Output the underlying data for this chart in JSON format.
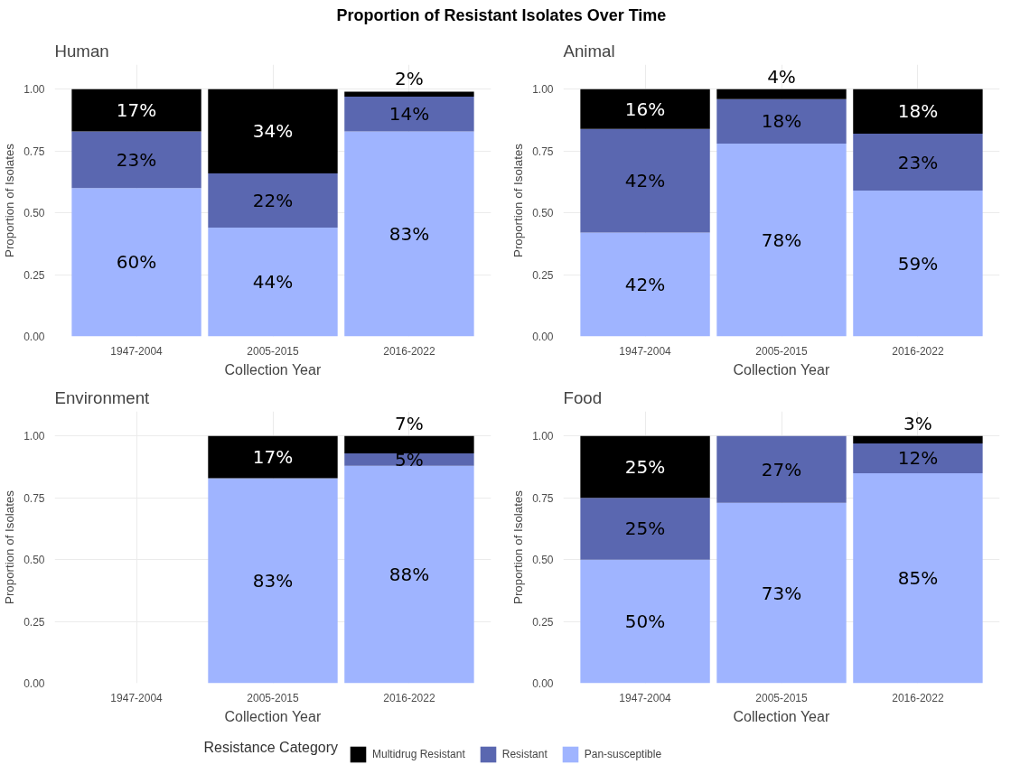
{
  "chart_data": [
    {
      "type": "bar",
      "stacked": true,
      "title": "Human",
      "annotations": [
        "Proportion of Resistant Isolates Over Time"
      ],
      "legend": "bottom",
      "legend_title": "Resistance Category",
      "xlabel": "Collection Year",
      "ylabel": "Proportion of Isolates",
      "categories": [
        "1947-2004",
        "2005-2015",
        "2016-2022"
      ],
      "ylim": [
        0,
        1
      ],
      "yticks": [
        {
          "value": 0,
          "label": "0.00"
        },
        {
          "value": 0.25,
          "label": "0.25"
        },
        {
          "value": 0.5,
          "label": "0.50"
        },
        {
          "value": 0.75,
          "label": "0.75"
        },
        {
          "value": 1,
          "label": "1.00"
        }
      ],
      "grid": true,
      "series": [
        {
          "name": "Pan-susceptible",
          "color": "#9fb4ff",
          "values": [
            0.6,
            0.44,
            0.83
          ],
          "value_labels": [
            "60%",
            "44%",
            "83%"
          ]
        },
        {
          "name": "Resistant",
          "color": "#5a67b0",
          "values": [
            0.23,
            0.22,
            0.14
          ],
          "value_labels": [
            "23%",
            "22%",
            "14%"
          ]
        },
        {
          "name": "Multidrug Resistant",
          "color": "#000000",
          "values": [
            0.17,
            0.34,
            0.02
          ],
          "value_labels": [
            "17%",
            "34%",
            "2%"
          ]
        }
      ]
    },
    {
      "type": "bar",
      "stacked": true,
      "title": "Animal",
      "xlabel": "Collection Year",
      "ylabel": "Proportion of Isolates",
      "categories": [
        "1947-2004",
        "2005-2015",
        "2016-2022"
      ],
      "ylim": [
        0,
        1
      ],
      "yticks": [
        {
          "value": 0,
          "label": "0.00"
        },
        {
          "value": 0.25,
          "label": "0.25"
        },
        {
          "value": 0.5,
          "label": "0.50"
        },
        {
          "value": 0.75,
          "label": "0.75"
        },
        {
          "value": 1,
          "label": "1.00"
        }
      ],
      "grid": true,
      "series": [
        {
          "color": "#9fb4ff",
          "values": [
            0.42,
            0.78,
            0.59
          ],
          "value_labels": [
            "42%",
            "78%",
            "59%"
          ]
        },
        {
          "color": "#5a67b0",
          "values": [
            0.42,
            0.18,
            0.23
          ],
          "value_labels": [
            "42%",
            "18%",
            "23%"
          ]
        },
        {
          "color": "#000000",
          "values": [
            0.16,
            0.04,
            0.18
          ],
          "value_labels": [
            "16%",
            "4%",
            "18%"
          ]
        }
      ]
    },
    {
      "type": "bar",
      "stacked": true,
      "title": "Environment",
      "xlabel": "Collection Year",
      "ylabel": "Proportion of Isolates",
      "categories": [
        "1947-2004",
        "2005-2015",
        "2016-2022"
      ],
      "ylim": [
        0,
        1
      ],
      "yticks": [
        {
          "value": 0,
          "label": "0.00"
        },
        {
          "value": 0.25,
          "label": "0.25"
        },
        {
          "value": 0.5,
          "label": "0.50"
        },
        {
          "value": 0.75,
          "label": "0.75"
        },
        {
          "value": 1,
          "label": "1.00"
        }
      ],
      "grid": true,
      "series": [
        {
          "color": "#9fb4ff",
          "values": [
            null,
            0.83,
            0.88
          ],
          "value_labels": [
            null,
            "83%",
            "88%"
          ]
        },
        {
          "color": "#5a67b0",
          "values": [
            null,
            null,
            0.05
          ],
          "value_labels": [
            null,
            null,
            "5%"
          ]
        },
        {
          "color": "#000000",
          "values": [
            null,
            0.17,
            0.07
          ],
          "value_labels": [
            null,
            "17%",
            "7%"
          ]
        }
      ]
    },
    {
      "type": "bar",
      "stacked": true,
      "title": "Food",
      "xlabel": "Collection Year",
      "ylabel": "Proportion of Isolates",
      "categories": [
        "1947-2004",
        "2005-2015",
        "2016-2022"
      ],
      "ylim": [
        0,
        1
      ],
      "yticks": [
        {
          "value": 0,
          "label": "0.00"
        },
        {
          "value": 0.25,
          "label": "0.25"
        },
        {
          "value": 0.5,
          "label": "0.50"
        },
        {
          "value": 0.75,
          "label": "0.75"
        },
        {
          "value": 1,
          "label": "1.00"
        }
      ],
      "grid": true,
      "series": [
        {
          "color": "#9fb4ff",
          "values": [
            0.5,
            0.73,
            0.85
          ],
          "value_labels": [
            "50%",
            "73%",
            "85%"
          ]
        },
        {
          "color": "#5a67b0",
          "values": [
            0.25,
            0.27,
            0.12
          ],
          "value_labels": [
            "25%",
            "27%",
            "12%"
          ]
        },
        {
          "color": "#000000",
          "values": [
            0.25,
            null,
            0.03
          ],
          "value_labels": [
            "25%",
            null,
            "3%"
          ]
        }
      ]
    }
  ]
}
